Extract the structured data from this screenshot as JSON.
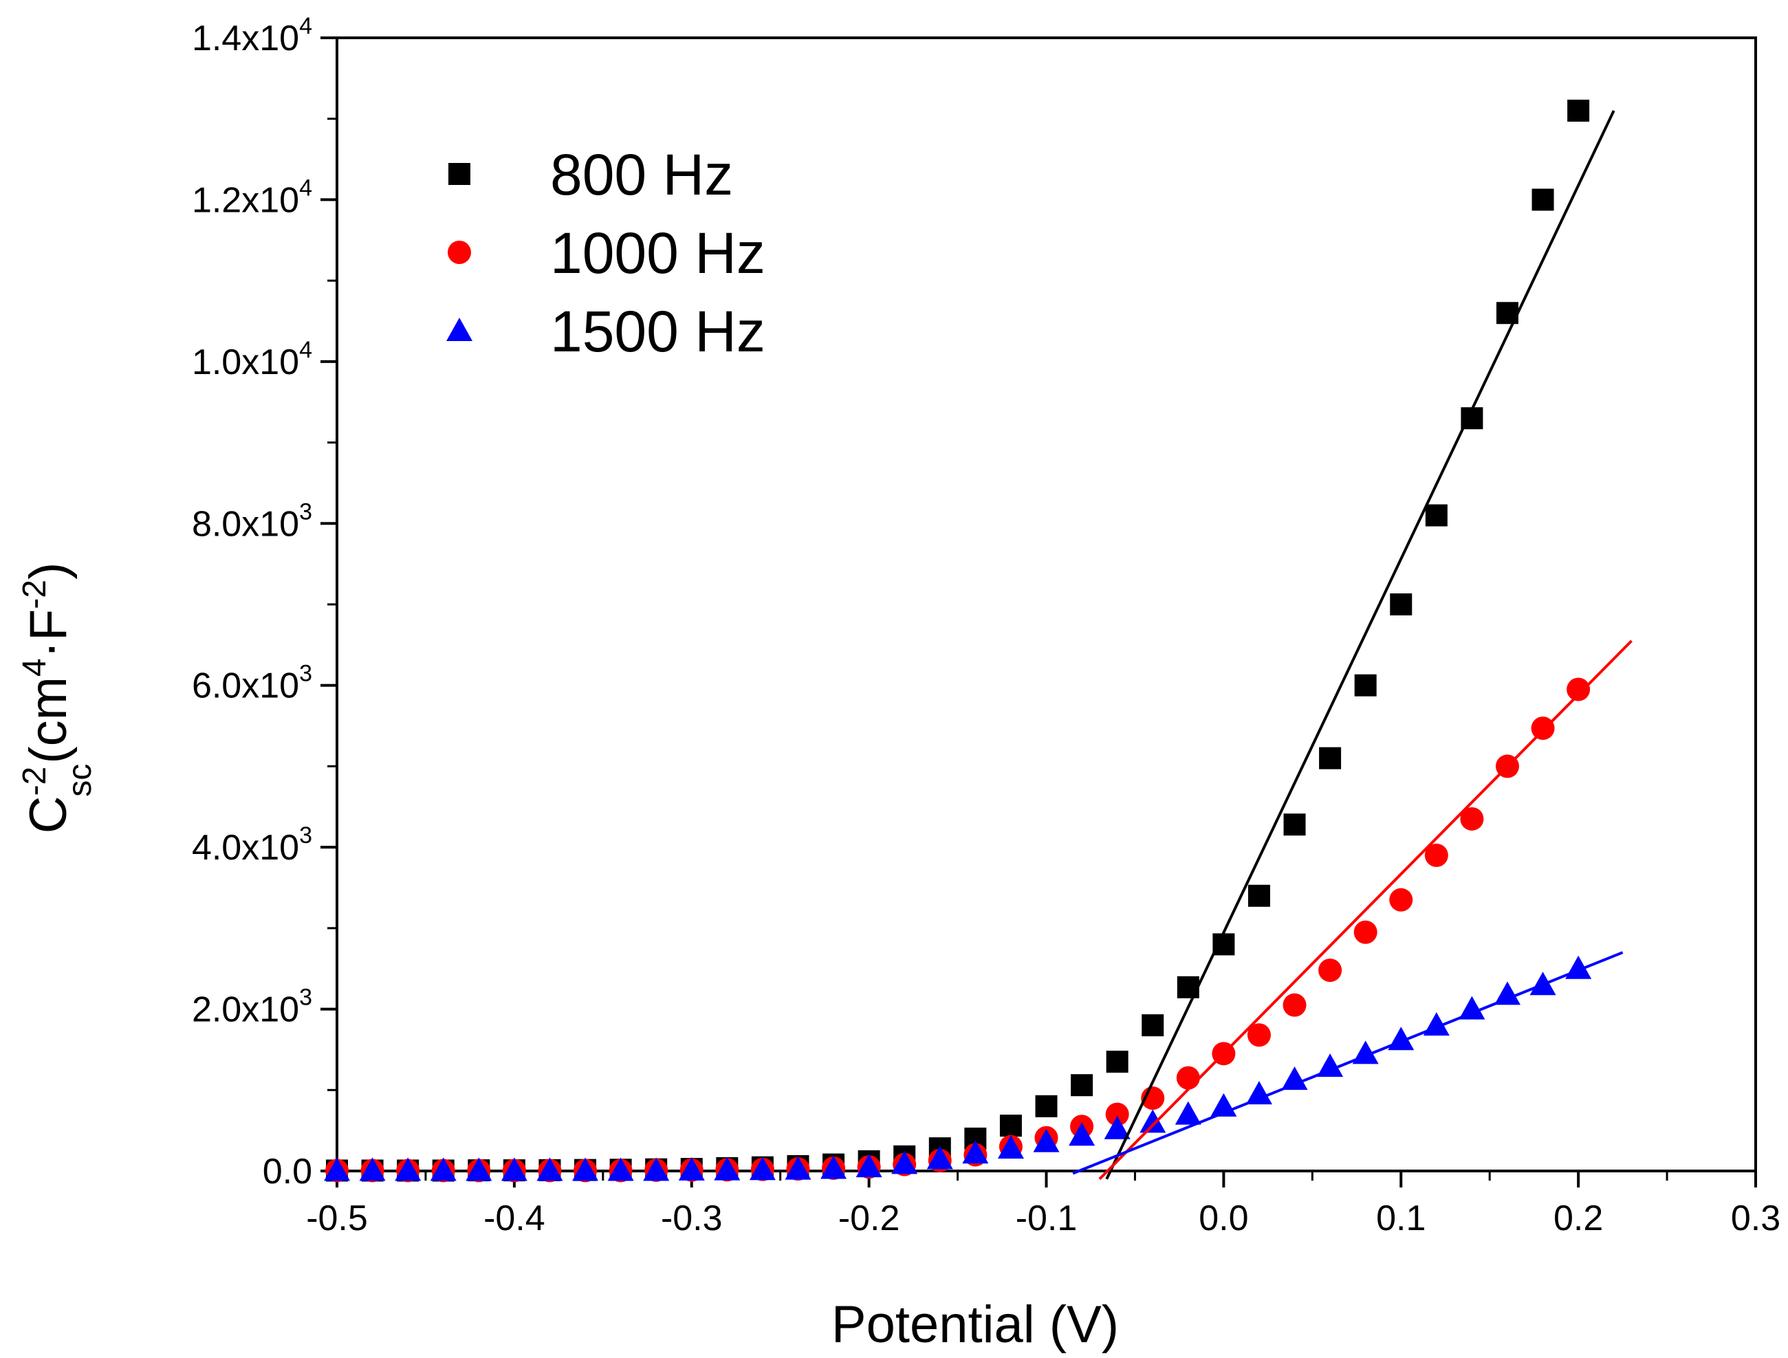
{
  "chart_data": {
    "type": "scatter",
    "title": "",
    "xlabel": "Potential (V)",
    "ylabel": {
      "base": "C",
      "sup": "-2",
      "sub": "sc",
      "open": "(cm",
      "sup2": "4",
      "middle": "·F",
      "sup3": "-2",
      "close": ")"
    },
    "xlim": [
      -0.5,
      0.3
    ],
    "ylim": [
      0,
      14000
    ],
    "x_ticks": [
      {
        "value": -0.5,
        "label": "-0.5"
      },
      {
        "value": -0.4,
        "label": "-0.4"
      },
      {
        "value": -0.3,
        "label": "-0.3"
      },
      {
        "value": -0.2,
        "label": "-0.2"
      },
      {
        "value": -0.1,
        "label": "-0.1"
      },
      {
        "value": 0.0,
        "label": "0.0"
      },
      {
        "value": 0.1,
        "label": "0.1"
      },
      {
        "value": 0.2,
        "label": "0.2"
      },
      {
        "value": 0.3,
        "label": "0.3"
      }
    ],
    "y_ticks": [
      {
        "value": 0,
        "mant": "0.0",
        "exp": ""
      },
      {
        "value": 2000,
        "mant": "2.0x10",
        "exp": "3"
      },
      {
        "value": 4000,
        "mant": "4.0x10",
        "exp": "3"
      },
      {
        "value": 6000,
        "mant": "6.0x10",
        "exp": "3"
      },
      {
        "value": 8000,
        "mant": "8.0x10",
        "exp": "3"
      },
      {
        "value": 10000,
        "mant": "1.0x10",
        "exp": "4"
      },
      {
        "value": 12000,
        "mant": "1.2x10",
        "exp": "4"
      },
      {
        "value": 14000,
        "mant": "1.4x10",
        "exp": "4"
      }
    ],
    "x_minor_step": 0.05,
    "y_minor_step": 1000,
    "grid": false,
    "legend_position": "top-left",
    "x": [
      -0.5,
      -0.48,
      -0.46,
      -0.44,
      -0.42,
      -0.4,
      -0.38,
      -0.36,
      -0.34,
      -0.32,
      -0.3,
      -0.28,
      -0.26,
      -0.24,
      -0.22,
      -0.2,
      -0.18,
      -0.16,
      -0.14,
      -0.12,
      -0.1,
      -0.08,
      -0.06,
      -0.04,
      -0.02,
      0.0,
      0.02,
      0.04,
      0.06,
      0.08,
      0.1,
      0.12,
      0.14,
      0.16,
      0.18,
      0.2
    ],
    "series": [
      {
        "name": "800 Hz",
        "marker": "square",
        "color": "#000000",
        "values": [
          5,
          5,
          5,
          5,
          8,
          8,
          10,
          12,
          15,
          20,
          25,
          35,
          45,
          60,
          80,
          120,
          180,
          280,
          400,
          560,
          800,
          1060,
          1350,
          1800,
          2270,
          2800,
          3400,
          4280,
          5100,
          6000,
          7000,
          8100,
          9300,
          10600,
          12000,
          13100
        ],
        "fit": {
          "x": [
            -0.066,
            0.22
          ],
          "y": [
            -100,
            13100
          ]
        }
      },
      {
        "name": "1000 Hz",
        "marker": "circle",
        "color": "#ff0000",
        "values": [
          5,
          5,
          5,
          5,
          5,
          5,
          5,
          5,
          5,
          10,
          12,
          15,
          20,
          25,
          35,
          50,
          80,
          130,
          200,
          300,
          410,
          550,
          700,
          900,
          1150,
          1450,
          1680,
          2050,
          2480,
          2950,
          3350,
          3900,
          4350,
          5000,
          5470,
          5950
        ],
        "fit": {
          "x": [
            -0.07,
            0.23
          ],
          "y": [
            -100,
            6550
          ]
        }
      },
      {
        "name": "1500 Hz",
        "marker": "triangle",
        "color": "#0000ff",
        "values": [
          5,
          5,
          5,
          5,
          5,
          5,
          5,
          5,
          5,
          5,
          10,
          12,
          15,
          20,
          30,
          50,
          90,
          150,
          220,
          280,
          360,
          440,
          520,
          600,
          700,
          800,
          950,
          1130,
          1290,
          1450,
          1620,
          1800,
          2000,
          2180,
          2300,
          2500
        ],
        "fit": {
          "x": [
            -0.085,
            0.225
          ],
          "y": [
            -30,
            2700
          ]
        }
      }
    ]
  }
}
